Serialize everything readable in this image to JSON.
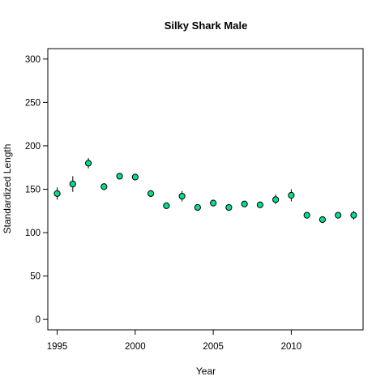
{
  "chart_data": {
    "type": "scatter",
    "title": "Silky Shark Male",
    "xlabel": "Year",
    "ylabel": "Standardized Length",
    "xlim": [
      1994.4,
      2014.6
    ],
    "ylim": [
      -12,
      312
    ],
    "x_ticks": [
      "1995",
      "2000",
      "2005",
      "2010"
    ],
    "y_ticks": [
      "0",
      "50",
      "100",
      "150",
      "200",
      "250",
      "300"
    ],
    "grid": false,
    "legend": "none",
    "marker_color": "#00e08c",
    "series": [
      {
        "x": [
          1995,
          1996,
          1997,
          1998,
          1999,
          2000,
          2001,
          2002,
          2003,
          2004,
          2005,
          2006,
          2007,
          2008,
          2009,
          2010,
          2011,
          2012,
          2013,
          2014
        ],
        "y": [
          145,
          156,
          180,
          153,
          165,
          164,
          145,
          131,
          142,
          129,
          134,
          129,
          133,
          132,
          138,
          143,
          120,
          115,
          120,
          120
        ],
        "y_low": [
          138,
          147,
          174,
          149,
          163,
          162,
          141,
          129,
          136,
          127,
          131,
          127,
          131,
          130,
          133,
          136,
          118,
          111,
          118,
          115
        ],
        "y_high": [
          152,
          165,
          186,
          157,
          167,
          167,
          149,
          133,
          148,
          132,
          138,
          132,
          135,
          135,
          144,
          150,
          123,
          119,
          123,
          125
        ]
      }
    ]
  }
}
